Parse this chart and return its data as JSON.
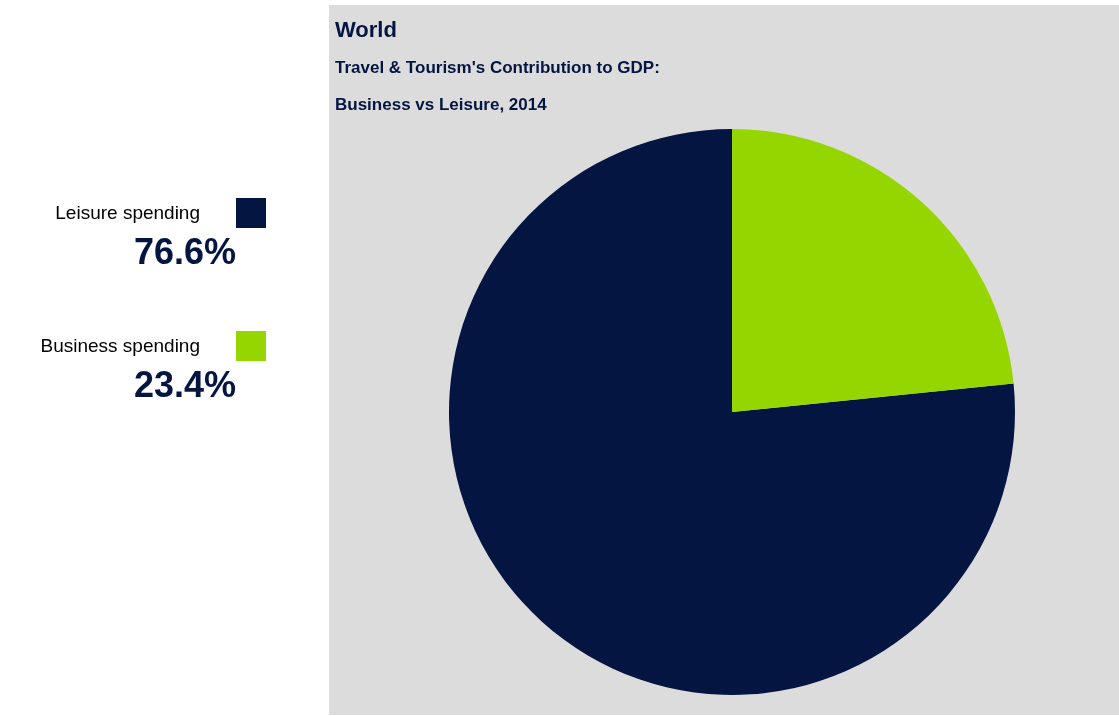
{
  "chart_data": {
    "type": "pie",
    "title": "World",
    "subtitle": [
      "Travel & Tourism's Contribution to GDP:",
      "Business vs Leisure, 2014"
    ],
    "categories": [
      "Leisure spending",
      "Business spending"
    ],
    "values": [
      76.6,
      23.4
    ],
    "colors": [
      "#031540",
      "#95d600"
    ],
    "value_labels": [
      "76.6%",
      "23.4%"
    ],
    "legend": "left"
  }
}
